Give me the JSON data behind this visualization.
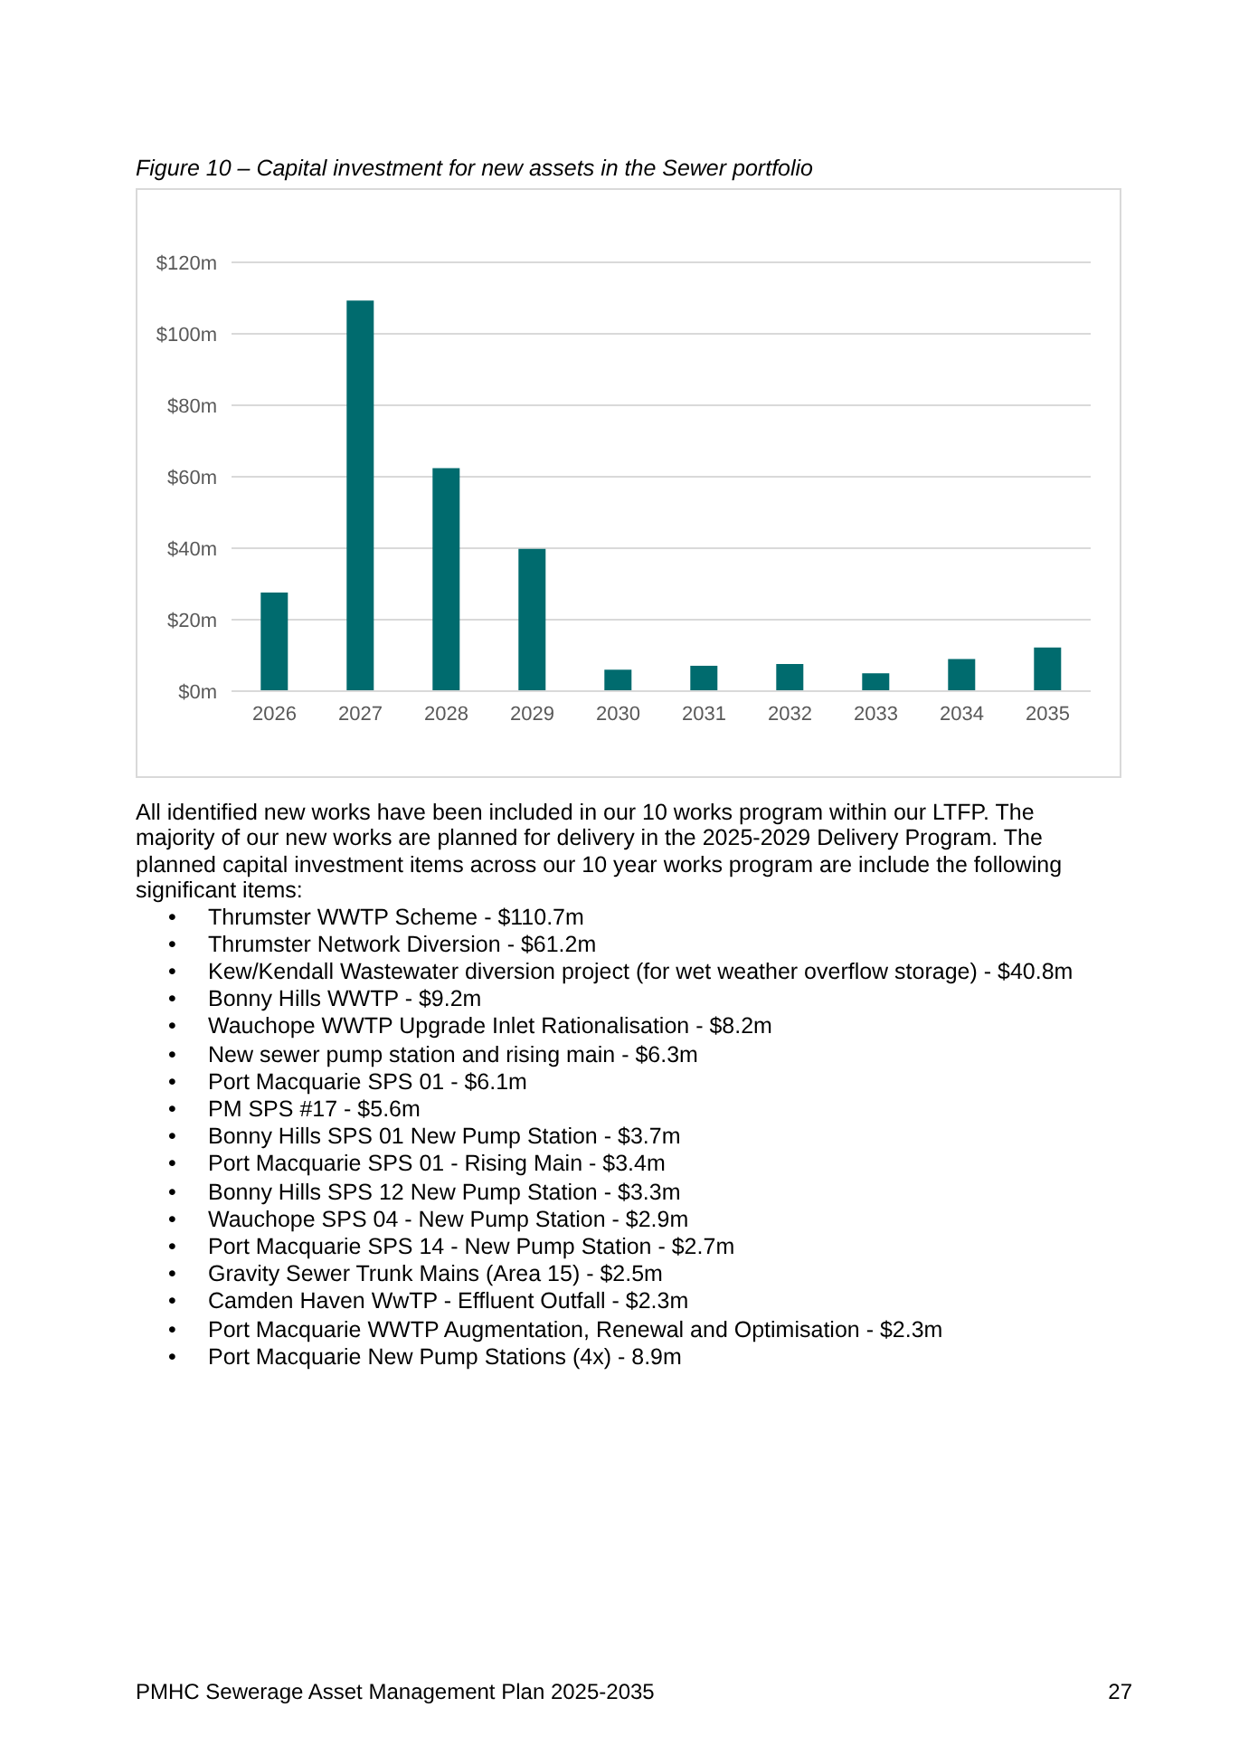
{
  "chart_data": {
    "type": "bar",
    "title": "Figure 10 – Capital investment for new assets in the Sewer portfolio",
    "categories": [
      "2026",
      "2027",
      "2028",
      "2029",
      "2030",
      "2031",
      "2032",
      "2033",
      "2034",
      "2035"
    ],
    "values": [
      27.6,
      109.3,
      62.4,
      39.8,
      6.0,
      7.1,
      7.6,
      5.0,
      9.0,
      12.2
    ],
    "color": "#006b6e",
    "ylim": [
      0,
      120
    ],
    "yticks": [
      {
        "value": 0,
        "label": "$0m"
      },
      {
        "value": 20,
        "label": "$20m"
      },
      {
        "value": 40,
        "label": "$40m"
      },
      {
        "value": 60,
        "label": "$60m"
      },
      {
        "value": 80,
        "label": "$80m"
      },
      {
        "value": 100,
        "label": "$100m"
      },
      {
        "value": 120,
        "label": "$120m"
      }
    ],
    "grid": "y",
    "annotations": [
      "All identified new works have been included in our 10 works program within our LTFP. The majority of our new works are planned for delivery in the 2025-2029 Delivery Program. The planned capital investment items across our 10 year works program are include the following significant items:",
      "• Thrumster WWTP Scheme - $110.7m",
      "• Thrumster Network Diversion - $61.2m",
      "• Kew/Kendall Wastewater diversion project (for wet weather overflow storage) - $40.8m",
      "• Bonny Hills WWTP - $9.2m",
      "• Wauchope WWTP Upgrade Inlet Rationalisation - $8.2m",
      "• New sewer pump station and rising main - $6.3m",
      "• Port Macquarie SPS 01 - $6.1m",
      "• PM SPS #17 - $5.6m",
      "• Bonny Hills SPS 01 New Pump Station - $3.7m",
      "• Port Macquarie SPS 01 - Rising Main - $3.4m",
      "• Bonny Hills SPS 12 New Pump Station - $3.3m",
      "• Wauchope SPS 04 - New Pump Station - $2.9m",
      "• Port Macquarie SPS 14 - New Pump Station - $2.7m",
      "• Gravity Sewer Trunk Mains (Area 15) - $2.5m",
      "• Camden Haven WwTP - Effluent Outfall - $2.3m",
      "• Port Macquarie WWTP Augmentation, Renewal and Optimisation - $2.3m",
      "• Port Macquarie New Pump Stations (4x) - 8.9m",
      "PMHC Sewerage Asset Management Plan 2025-2035",
      "27"
    ]
  }
}
